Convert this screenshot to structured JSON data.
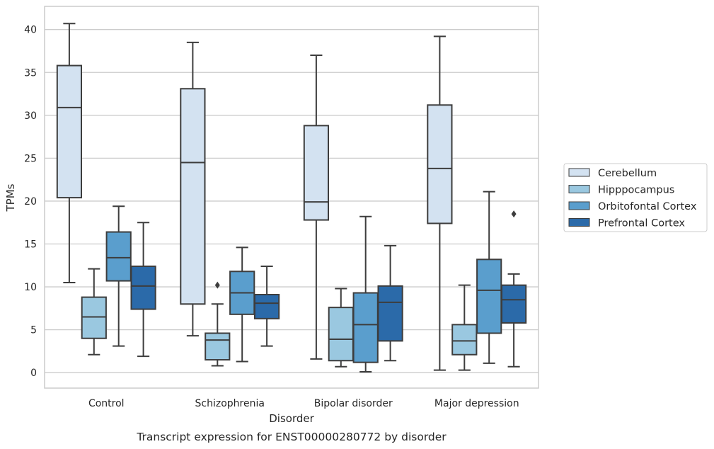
{
  "chart_data": {
    "type": "box",
    "caption": "Transcript expression for ENST00000280772 by disorder",
    "xlabel": "Disorder",
    "ylabel": "TPMs",
    "ylim": [
      -1.8,
      42.7
    ],
    "yticks": [
      0,
      5,
      10,
      15,
      20,
      25,
      30,
      35,
      40
    ],
    "grid": "horizontal",
    "legend_position": "right",
    "categories": [
      "Control",
      "Schizophrenia",
      "Bipolar disorder",
      "Major depression"
    ],
    "series": [
      {
        "name": "Cerebellum",
        "color": "#d3e2f1",
        "boxes": [
          {
            "whisker_low": 10.5,
            "q1": 20.4,
            "median": 30.9,
            "q3": 35.8,
            "whisker_high": 40.7,
            "outliers": []
          },
          {
            "whisker_low": 4.3,
            "q1": 8.0,
            "median": 24.5,
            "q3": 33.1,
            "whisker_high": 38.5,
            "outliers": []
          },
          {
            "whisker_low": 1.6,
            "q1": 17.8,
            "median": 19.9,
            "q3": 28.8,
            "whisker_high": 37.0,
            "outliers": []
          },
          {
            "whisker_low": 0.3,
            "q1": 17.4,
            "median": 23.8,
            "q3": 31.2,
            "whisker_high": 39.2,
            "outliers": []
          }
        ]
      },
      {
        "name": "Hipppocampus",
        "color": "#9ac8e0",
        "boxes": [
          {
            "whisker_low": 2.1,
            "q1": 4.0,
            "median": 6.5,
            "q3": 8.8,
            "whisker_high": 12.1,
            "outliers": []
          },
          {
            "whisker_low": 0.8,
            "q1": 1.5,
            "median": 3.8,
            "q3": 4.6,
            "whisker_high": 8.0,
            "outliers": [
              10.2
            ]
          },
          {
            "whisker_low": 0.7,
            "q1": 1.4,
            "median": 3.9,
            "q3": 7.6,
            "whisker_high": 9.8,
            "outliers": []
          },
          {
            "whisker_low": 0.3,
            "q1": 2.1,
            "median": 3.7,
            "q3": 5.6,
            "whisker_high": 10.2,
            "outliers": []
          }
        ]
      },
      {
        "name": "Orbitofontal Cortex",
        "color": "#5a9ecd",
        "boxes": [
          {
            "whisker_low": 3.1,
            "q1": 10.7,
            "median": 13.4,
            "q3": 16.4,
            "whisker_high": 19.4,
            "outliers": []
          },
          {
            "whisker_low": 1.3,
            "q1": 6.8,
            "median": 9.3,
            "q3": 11.8,
            "whisker_high": 14.6,
            "outliers": []
          },
          {
            "whisker_low": 0.1,
            "q1": 1.2,
            "median": 5.6,
            "q3": 9.3,
            "whisker_high": 18.2,
            "outliers": []
          },
          {
            "whisker_low": 1.1,
            "q1": 4.6,
            "median": 9.6,
            "q3": 13.2,
            "whisker_high": 21.1,
            "outliers": []
          }
        ]
      },
      {
        "name": "Prefrontal Cortex",
        "color": "#2b6aa9",
        "boxes": [
          {
            "whisker_low": 1.9,
            "q1": 7.4,
            "median": 10.1,
            "q3": 12.4,
            "whisker_high": 17.5,
            "outliers": []
          },
          {
            "whisker_low": 3.1,
            "q1": 6.3,
            "median": 8.1,
            "q3": 9.1,
            "whisker_high": 12.4,
            "outliers": []
          },
          {
            "whisker_low": 1.4,
            "q1": 3.7,
            "median": 8.2,
            "q3": 10.1,
            "whisker_high": 14.8,
            "outliers": []
          },
          {
            "whisker_low": 0.7,
            "q1": 5.8,
            "median": 8.5,
            "q3": 10.2,
            "whisker_high": 11.5,
            "outliers": [
              18.5
            ]
          }
        ]
      }
    ]
  }
}
